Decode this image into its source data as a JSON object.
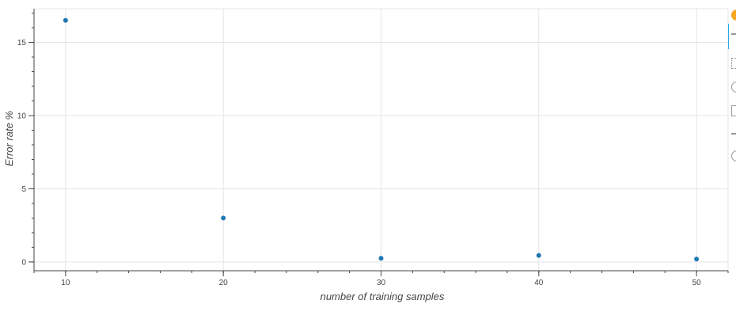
{
  "chart_data": {
    "type": "scatter",
    "title": "",
    "xlabel": "number of training samples",
    "ylabel": "Error rate %",
    "x": [
      10,
      20,
      30,
      40,
      50
    ],
    "y": [
      16.5,
      3.0,
      0.25,
      0.45,
      0.2
    ],
    "xlim": [
      8,
      52
    ],
    "ylim": [
      -0.6,
      17.3
    ],
    "xticks": [
      10,
      20,
      30,
      40,
      50
    ],
    "yticks": [
      0,
      5,
      10,
      15
    ],
    "x_minor_step": 2,
    "y_minor_step": 1,
    "grid": true,
    "marker_color": "#1f77b4",
    "grid_color": "#e5e5e5",
    "axis_color": "#444444"
  },
  "toolbar": {
    "tools": [
      "bokeh-logo-icon",
      "pan-icon",
      "box-zoom-icon",
      "wheel-zoom-icon",
      "save-icon",
      "reset-icon",
      "help-icon"
    ],
    "active_color": "#26aae1"
  }
}
